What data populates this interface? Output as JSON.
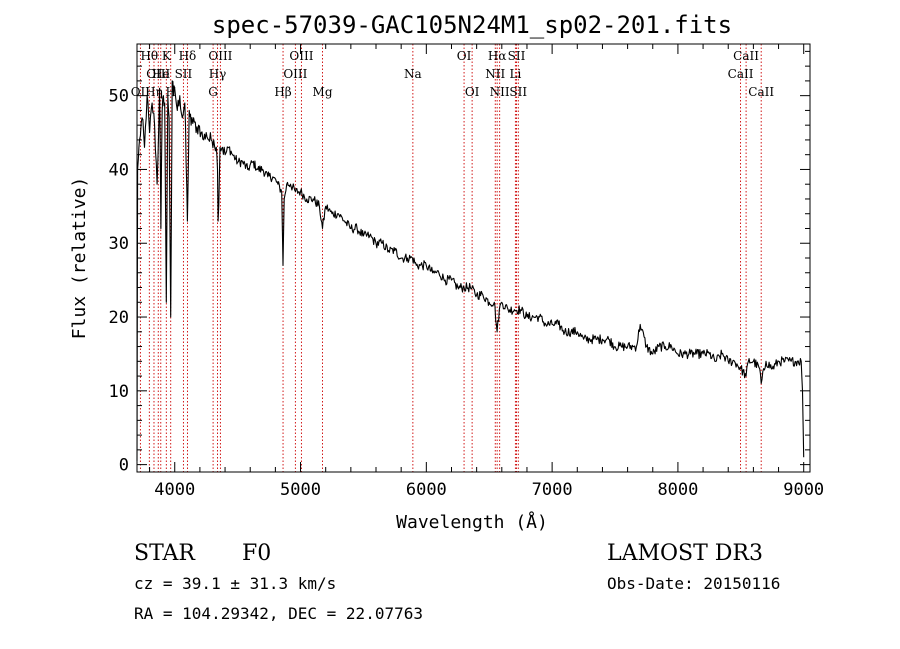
{
  "chart_data": {
    "type": "line",
    "title": "spec-57039-GAC105N24M1_sp02-201.fits",
    "xlabel": "Wavelength (Å)",
    "ylabel": "Flux (relative)",
    "xlim": [
      3700,
      9050
    ],
    "ylim": [
      -1,
      57
    ],
    "xticks": [
      4000,
      5000,
      6000,
      7000,
      8000,
      9000
    ],
    "yticks": [
      0,
      10,
      20,
      30,
      40,
      50
    ],
    "grid": false,
    "series": [
      {
        "name": "spectrum",
        "x": [
          3700,
          3705,
          3720,
          3740,
          3760,
          3780,
          3800,
          3820,
          3840,
          3860,
          3880,
          3890,
          3900,
          3910,
          3920,
          3933,
          3945,
          3955,
          3968,
          3980,
          3990,
          4000,
          4020,
          4040,
          4060,
          4080,
          4101,
          4115,
          4130,
          4150,
          4170,
          4190,
          4210,
          4230,
          4250,
          4270,
          4290,
          4310,
          4330,
          4340,
          4345,
          4360,
          4380,
          4400,
          4430,
          4460,
          4500,
          4540,
          4580,
          4620,
          4660,
          4700,
          4740,
          4780,
          4820,
          4850,
          4861,
          4870,
          4890,
          4920,
          4960,
          5000,
          5050,
          5100,
          5150,
          5175,
          5200,
          5250,
          5300,
          5350,
          5400,
          5450,
          5500,
          5550,
          5600,
          5650,
          5700,
          5750,
          5800,
          5850,
          5890,
          5920,
          5950,
          6000,
          6050,
          6100,
          6150,
          6200,
          6250,
          6300,
          6350,
          6400,
          6450,
          6500,
          6540,
          6563,
          6580,
          6600,
          6650,
          6700,
          6750,
          6800,
          6850,
          6900,
          6950,
          7000,
          7050,
          7100,
          7150,
          7200,
          7250,
          7300,
          7350,
          7400,
          7450,
          7500,
          7550,
          7600,
          7650,
          7670,
          7700,
          7750,
          7800,
          7850,
          7900,
          7950,
          8000,
          8050,
          8100,
          8150,
          8200,
          8250,
          8300,
          8350,
          8400,
          8450,
          8500,
          8542,
          8560,
          8600,
          8650,
          8662,
          8700,
          8750,
          8800,
          8850,
          8900,
          8950,
          8980,
          8990,
          9000
        ],
        "values": [
          0.5,
          40,
          44,
          47,
          43,
          50,
          45,
          49,
          46,
          38,
          51,
          32,
          48,
          50,
          49,
          22,
          50,
          47,
          20,
          52,
          50,
          51,
          48,
          50,
          47,
          49,
          33,
          48,
          46,
          47,
          45,
          46,
          45,
          44,
          45,
          44,
          44,
          44,
          43,
          40,
          33,
          43,
          43,
          42,
          43,
          42,
          41,
          41,
          40,
          41,
          40,
          40,
          39,
          39,
          38,
          37,
          27,
          36,
          38,
          38,
          37,
          37,
          36,
          36,
          35,
          32,
          35,
          34,
          34,
          33,
          32,
          32,
          31,
          31,
          30,
          30,
          29,
          29,
          28,
          28,
          28,
          27,
          27,
          27,
          26,
          26,
          25,
          25,
          24,
          24,
          24,
          23,
          23,
          22,
          22,
          18,
          21,
          22,
          21,
          21,
          21,
          20,
          20,
          20,
          19,
          19,
          19,
          18,
          18,
          18,
          17,
          17,
          17,
          17,
          17,
          16,
          16,
          16,
          16,
          16,
          19,
          16,
          15,
          16,
          16,
          16,
          15,
          15,
          15,
          15,
          15,
          15,
          14,
          15,
          14,
          14,
          13,
          12,
          14,
          14,
          13,
          11,
          14,
          13,
          14,
          14,
          14,
          14,
          14,
          10,
          1
        ]
      }
    ],
    "lines": [
      {
        "name": "OII",
        "x": 3727,
        "row": 2
      },
      {
        "name": "Hθ",
        "x": 3798,
        "row": 0
      },
      {
        "name": "OIII",
        "x": 3869,
        "row": 1
      },
      {
        "name": "Hη",
        "x": 3835,
        "row": 2
      },
      {
        "name": "K",
        "x": 3933,
        "row": 0
      },
      {
        "name": "He",
        "x": 3889,
        "row": 1
      },
      {
        "name": "SII",
        "x": 4069,
        "row": 1
      },
      {
        "name": "H",
        "x": 3968,
        "row": 2
      },
      {
        "name": "Hδ",
        "x": 4101,
        "row": 0
      },
      {
        "name": "OIII",
        "x": 4363,
        "row": 0
      },
      {
        "name": "Hγ",
        "x": 4340,
        "row": 1
      },
      {
        "name": "G",
        "x": 4305,
        "row": 2
      },
      {
        "name": "Hβ",
        "x": 4861,
        "row": 2
      },
      {
        "name": "OIII",
        "x": 5007,
        "row": 0
      },
      {
        "name": "OIII",
        "x": 4959,
        "row": 1
      },
      {
        "name": "Mg",
        "x": 5175,
        "row": 2
      },
      {
        "name": "Na",
        "x": 5893,
        "row": 1
      },
      {
        "name": "OI",
        "x": 6300,
        "row": 0
      },
      {
        "name": "OI",
        "x": 6364,
        "row": 2
      },
      {
        "name": "Hα",
        "x": 6563,
        "row": 0
      },
      {
        "name": "NII",
        "x": 6548,
        "row": 1
      },
      {
        "name": "NII",
        "x": 6583,
        "row": 2
      },
      {
        "name": "SII",
        "x": 6717,
        "row": 0
      },
      {
        "name": "Li",
        "x": 6708,
        "row": 1
      },
      {
        "name": "SII",
        "x": 6731,
        "row": 2
      },
      {
        "name": "CaII",
        "x": 8542,
        "row": 0
      },
      {
        "name": "CaII",
        "x": 8498,
        "row": 1
      },
      {
        "name": "CaII",
        "x": 8662,
        "row": 2
      }
    ]
  },
  "info": {
    "class_label": "STAR",
    "subclass": "F0",
    "survey": "LAMOST DR3",
    "redshift": "cz = 39.1 ± 31.3 km/s",
    "obs_date": "Obs-Date: 20150116",
    "coords": "RA = 104.29342, DEC =  22.07763"
  }
}
